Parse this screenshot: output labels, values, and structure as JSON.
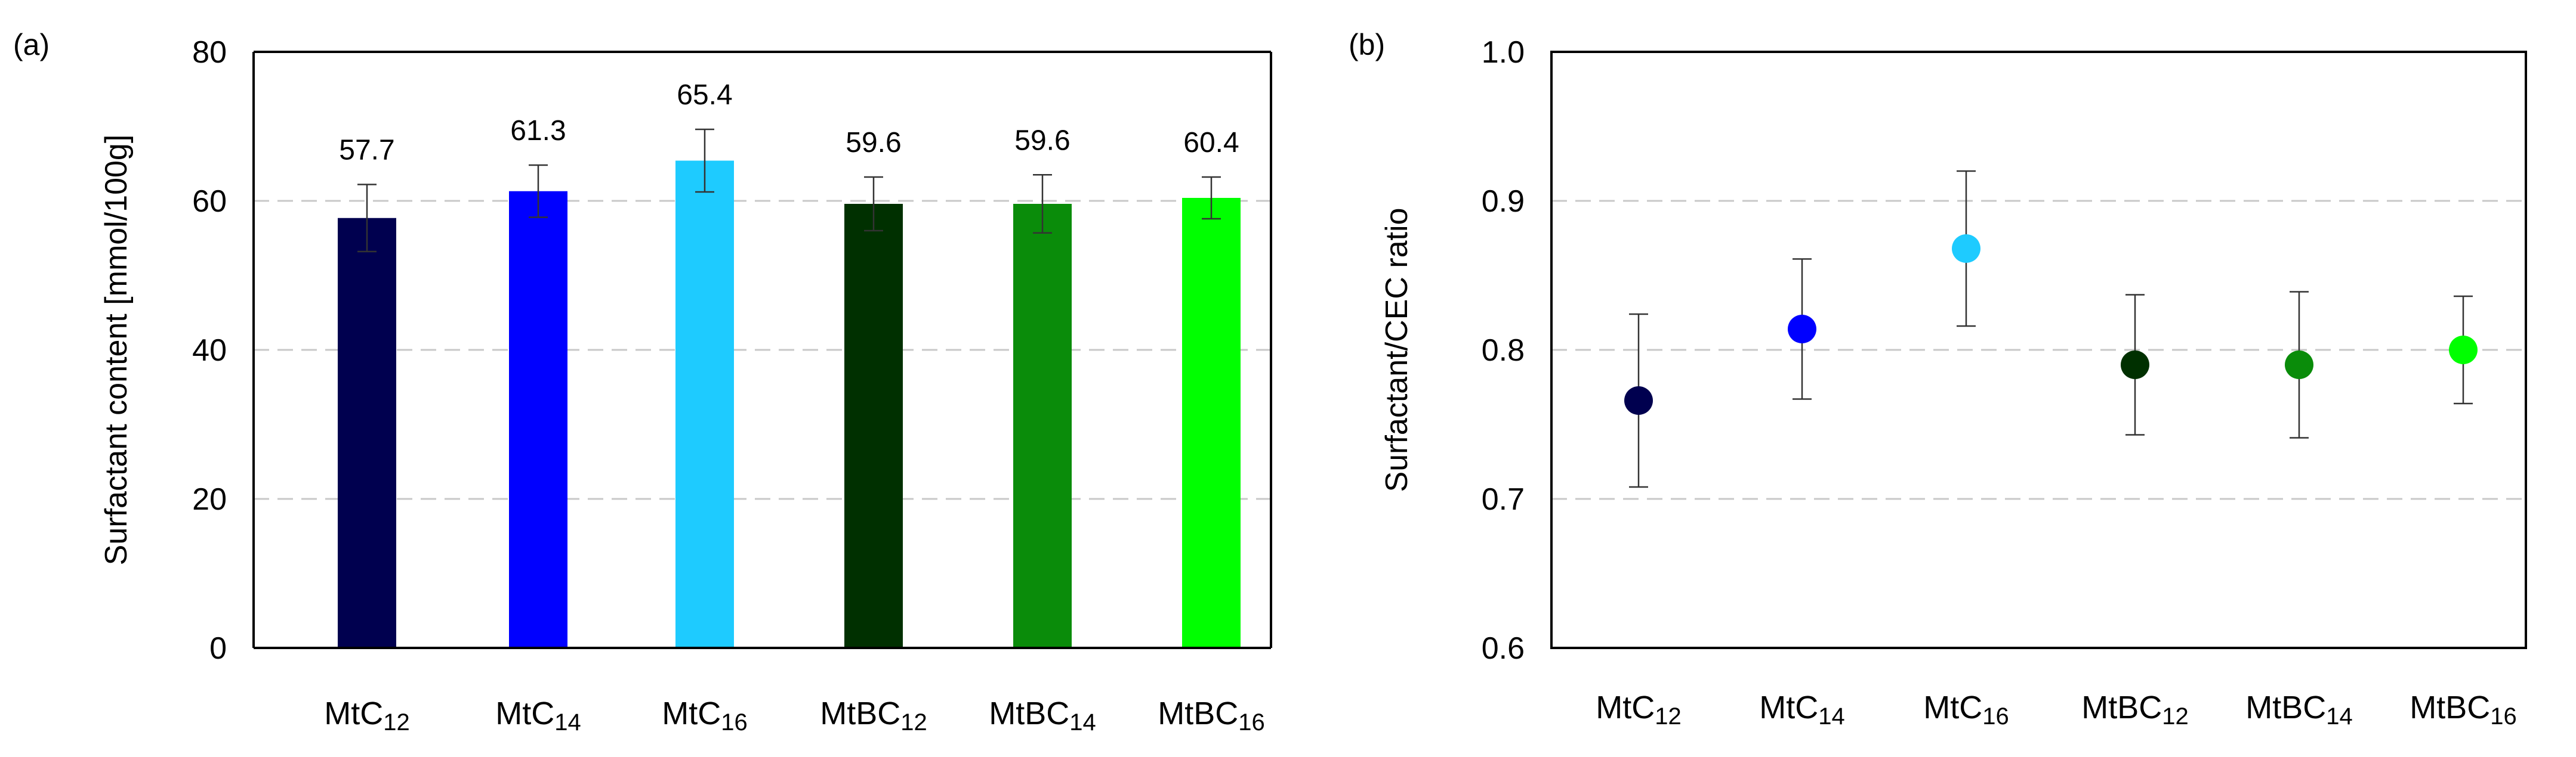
{
  "chart_data": [
    {
      "panel_label": "(a)",
      "type": "bar",
      "title": "",
      "xlabel": "",
      "ylabel": "Surfactant content [mmol/100g]",
      "ylim": [
        0,
        80
      ],
      "yticks": [
        0,
        20,
        40,
        60,
        80
      ],
      "grid": "horizontal dashed",
      "categories": [
        {
          "base": "MtC",
          "sub": "12"
        },
        {
          "base": "MtC",
          "sub": "14"
        },
        {
          "base": "MtC",
          "sub": "16"
        },
        {
          "base": "MtBC",
          "sub": "12"
        },
        {
          "base": "MtBC",
          "sub": "14"
        },
        {
          "base": "MtBC",
          "sub": "16"
        }
      ],
      "values": [
        57.7,
        61.3,
        65.4,
        59.6,
        59.6,
        60.4
      ],
      "value_labels": [
        "57.7",
        "61.3",
        "65.4",
        "59.6",
        "59.6",
        "60.4"
      ],
      "errors": [
        4.5,
        3.5,
        4.2,
        3.6,
        3.9,
        2.8
      ],
      "colors": [
        "#00004f",
        "#0000ff",
        "#1ecbff",
        "#003000",
        "#0a8c0a",
        "#00ff00"
      ]
    },
    {
      "panel_label": "(b)",
      "type": "scatter",
      "title": "",
      "xlabel": "",
      "ylabel": "Surfactant/CEC ratio",
      "ylim": [
        0.6,
        1.0
      ],
      "yticks": [
        "0.6",
        "0.7",
        "0.8",
        "0.9",
        "1.0"
      ],
      "grid": "horizontal dashed",
      "categories": [
        {
          "base": "MtC",
          "sub": "12"
        },
        {
          "base": "MtC",
          "sub": "14"
        },
        {
          "base": "MtC",
          "sub": "16"
        },
        {
          "base": "MtBC",
          "sub": "12"
        },
        {
          "base": "MtBC",
          "sub": "14"
        },
        {
          "base": "MtBC",
          "sub": "16"
        }
      ],
      "values": [
        0.766,
        0.814,
        0.868,
        0.79,
        0.79,
        0.8
      ],
      "errors": [
        0.058,
        0.047,
        0.052,
        0.047,
        0.049,
        0.036
      ],
      "colors": [
        "#00004f",
        "#0000ff",
        "#1ecbff",
        "#003000",
        "#0a8c0a",
        "#00ff00"
      ]
    }
  ]
}
